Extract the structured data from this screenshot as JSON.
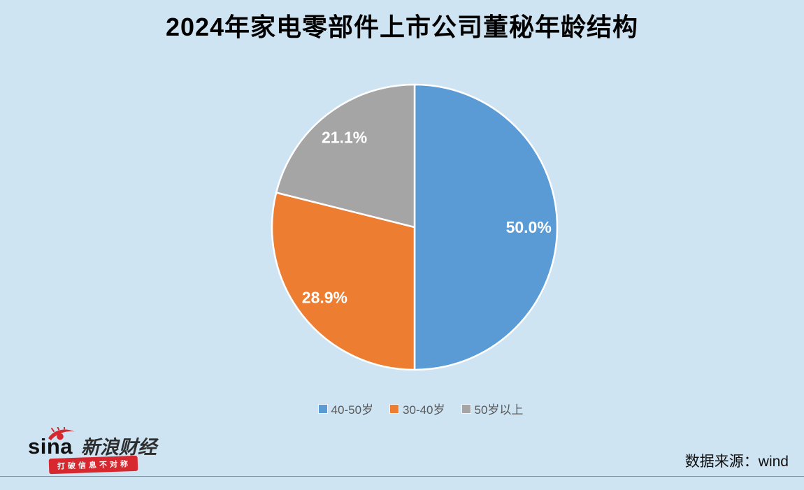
{
  "background_color": "#cfe4f3",
  "chart_data": {
    "type": "pie",
    "title": "2024年家电零部件上市公司董秘年龄结构",
    "categories": [
      "40-50岁",
      "30-40岁",
      "50岁以上"
    ],
    "values": [
      50.0,
      28.9,
      21.1
    ],
    "labels": [
      "50.0%",
      "28.9%",
      "21.1%"
    ],
    "colors": [
      "#5b9bd5",
      "#ed7d31",
      "#a5a5a5"
    ],
    "start_angle_deg": 0,
    "direction": "clockwise",
    "legend_position": "bottom",
    "label_color": "#ffffff",
    "slice_border_color": "#ffffff"
  },
  "footer": {
    "source_label": "数据来源：wind",
    "logo": {
      "brand": "sina",
      "brand_cn": "新浪财经",
      "slogan": "打破信息不对称",
      "red": "#d7282f"
    }
  }
}
